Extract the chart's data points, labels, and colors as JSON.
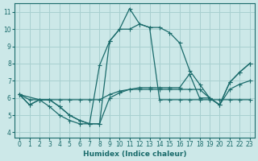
{
  "xlabel": "Humidex (Indice chaleur)",
  "background_color": "#cce8e8",
  "grid_color": "#a8d0d0",
  "line_color": "#1a6b6b",
  "xlim": [
    -0.5,
    23.5
  ],
  "ylim": [
    3.7,
    11.5
  ],
  "xticks": [
    0,
    1,
    2,
    3,
    4,
    5,
    6,
    7,
    8,
    9,
    10,
    11,
    12,
    13,
    14,
    15,
    16,
    17,
    18,
    19,
    20,
    21,
    22,
    23
  ],
  "yticks": [
    4,
    5,
    6,
    7,
    8,
    9,
    10,
    11
  ],
  "lines": [
    {
      "x": [
        0,
        1,
        2,
        3,
        4,
        5,
        6,
        7,
        8,
        9,
        10,
        11,
        12,
        13,
        14,
        15,
        16,
        17,
        18,
        19,
        20,
        21,
        22,
        23
      ],
      "y": [
        6.2,
        5.6,
        5.9,
        5.9,
        5.5,
        5.0,
        4.7,
        4.5,
        4.5,
        9.3,
        10.0,
        11.2,
        10.3,
        10.1,
        10.1,
        9.8,
        9.2,
        7.6,
        6.8,
        6.0,
        5.6,
        6.9,
        7.5,
        8.0
      ]
    },
    {
      "x": [
        0,
        1,
        2,
        3,
        4,
        5,
        6,
        7,
        8,
        9,
        10,
        11,
        12,
        13,
        14,
        15,
        16,
        17,
        18,
        19,
        20,
        21,
        22,
        23
      ],
      "y": [
        6.2,
        5.6,
        5.9,
        5.9,
        5.5,
        5.0,
        4.7,
        4.5,
        7.9,
        9.3,
        10.0,
        10.0,
        10.3,
        10.1,
        5.9,
        5.9,
        5.9,
        5.9,
        5.9,
        5.9,
        5.9,
        5.9,
        5.9,
        5.9
      ]
    },
    {
      "x": [
        0,
        1,
        2,
        3,
        4,
        5,
        6,
        7,
        8,
        9,
        10,
        11,
        12,
        13,
        14,
        15,
        16,
        17,
        18,
        19,
        20,
        21,
        22,
        23
      ],
      "y": [
        6.2,
        5.9,
        5.9,
        5.9,
        5.9,
        5.9,
        5.9,
        5.9,
        5.9,
        6.2,
        6.4,
        6.5,
        6.6,
        6.6,
        6.6,
        6.6,
        6.6,
        7.4,
        6.0,
        6.0,
        5.6,
        6.9,
        7.5,
        8.0
      ]
    },
    {
      "x": [
        0,
        2,
        3,
        4,
        5,
        6,
        7,
        8,
        9,
        10,
        11,
        12,
        13,
        14,
        15,
        16,
        17,
        18,
        19,
        20,
        21,
        22,
        23
      ],
      "y": [
        6.2,
        5.9,
        5.5,
        5.0,
        4.7,
        4.5,
        4.5,
        4.5,
        6.0,
        6.3,
        6.5,
        6.5,
        6.5,
        6.5,
        6.5,
        6.5,
        6.5,
        6.5,
        6.0,
        5.6,
        6.5,
        6.8,
        7.0
      ]
    }
  ]
}
